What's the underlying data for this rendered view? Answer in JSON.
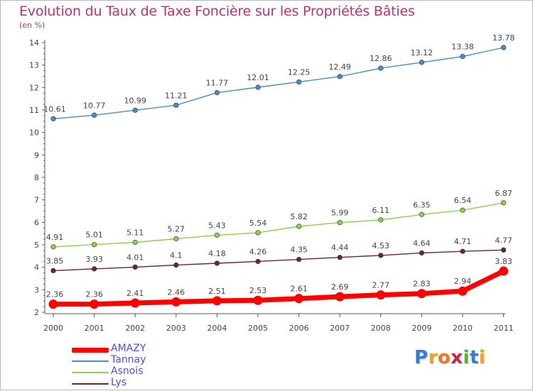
{
  "chart_data": {
    "type": "line",
    "title": "Evolution du Taux de Taxe Foncière sur les Propriétés Bâties",
    "subtitle": "(en %)",
    "x": [
      "2000",
      "2001",
      "2002",
      "2003",
      "2004",
      "2005",
      "2006",
      "2007",
      "2008",
      "2009",
      "2010",
      "2011"
    ],
    "ylim": [
      2,
      14
    ],
    "yticks": [
      "2",
      "3",
      "4",
      "5",
      "6",
      "7",
      "8",
      "9",
      "10",
      "11",
      "12",
      "13",
      "14"
    ],
    "grid": false,
    "legend_position": "bottom-left",
    "series": [
      {
        "name": "AMAZY",
        "color": "#ff0000",
        "values": [
          2.36,
          2.36,
          2.41,
          2.46,
          2.51,
          2.53,
          2.61,
          2.69,
          2.77,
          2.83,
          2.94,
          3.83
        ],
        "labels": [
          "2.36",
          "2.36",
          "2.41",
          "2.46",
          "2.51",
          "2.53",
          "2.61",
          "2.69",
          "2.77",
          "2.83",
          "2.94",
          "3.83"
        ]
      },
      {
        "name": "Tannay",
        "color": "#4a8cc8",
        "values": [
          10.61,
          10.77,
          10.99,
          11.21,
          11.77,
          12.01,
          12.25,
          12.49,
          12.86,
          13.12,
          13.38,
          13.78
        ],
        "labels": [
          "10.61",
          "10.77",
          "10.99",
          "11.21",
          "11.77",
          "12.01",
          "12.25",
          "12.49",
          "12.86",
          "13.12",
          "13.38",
          "13.78"
        ]
      },
      {
        "name": "Asnois",
        "color": "#8ad14c",
        "values": [
          4.91,
          5.01,
          5.11,
          5.27,
          5.43,
          5.54,
          5.82,
          5.99,
          6.11,
          6.35,
          6.54,
          6.87
        ],
        "labels": [
          "4.91",
          "5.01",
          "5.11",
          "5.27",
          "5.43",
          "5.54",
          "5.82",
          "5.99",
          "6.11",
          "6.35",
          "6.54",
          "6.87"
        ]
      },
      {
        "name": "Lys",
        "color": "#6b2828",
        "values": [
          3.85,
          3.93,
          4.01,
          4.1,
          4.18,
          4.26,
          4.35,
          4.44,
          4.53,
          4.64,
          4.71,
          4.77
        ],
        "labels": [
          "3.85",
          "3.93",
          "4.01",
          "4.1",
          "4.18",
          "4.26",
          "4.35",
          "4.44",
          "4.53",
          "4.64",
          "4.71",
          "4.77"
        ]
      }
    ]
  },
  "branding": {
    "logo_text": "Proxiti",
    "logo_letters": [
      "P",
      "r",
      "o",
      "x",
      "i",
      "t",
      "i"
    ],
    "logo_colors": [
      "#2f7fd6",
      "#f0a020",
      "#ee7722",
      "#cc2244",
      "#5ab030",
      "#2f7fd6",
      "#f0a020"
    ]
  }
}
